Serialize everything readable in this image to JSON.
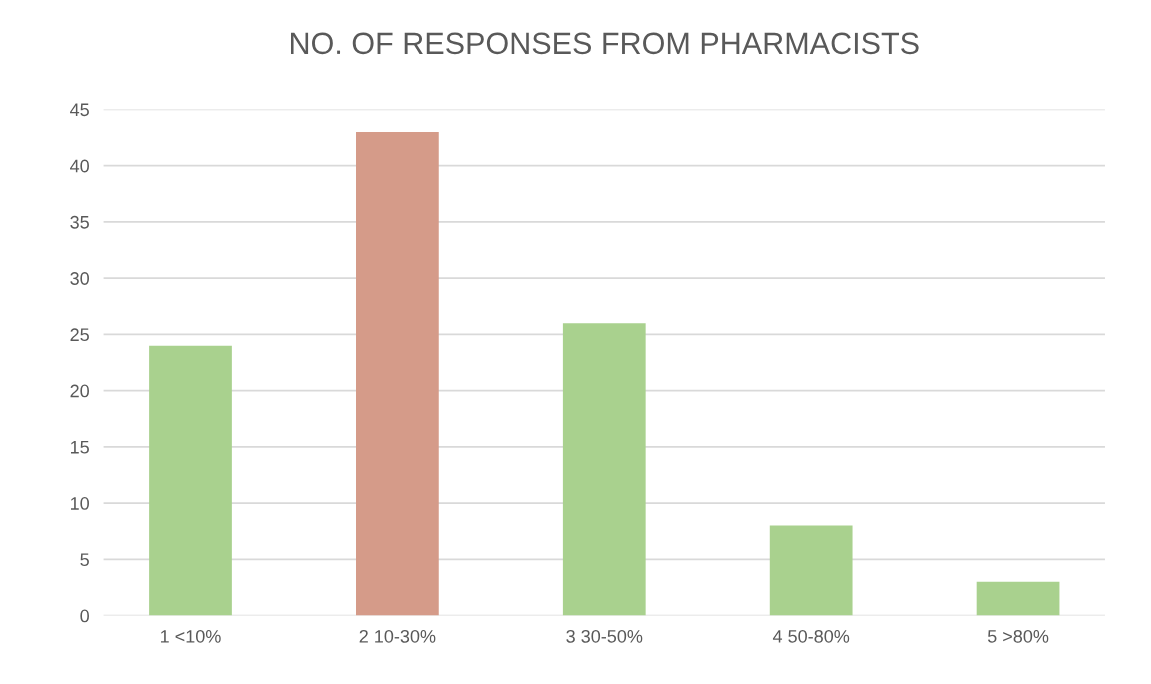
{
  "chart_data": {
    "type": "bar",
    "title": "NO. OF RESPONSES FROM PHARMACISTS",
    "categories": [
      "1 <10%",
      "2 10-30%",
      "3 30-50%",
      "4 50-80%",
      "5 >80%"
    ],
    "values": [
      24,
      43,
      26,
      8,
      3
    ],
    "colors": [
      "#a9d18e",
      "#d59b89",
      "#a9d18e",
      "#a9d18e",
      "#a9d18e"
    ],
    "ylim": [
      0,
      45
    ],
    "yticks": [
      0,
      5,
      10,
      15,
      20,
      25,
      30,
      35,
      40,
      45
    ],
    "grid": "y",
    "legend": false
  }
}
